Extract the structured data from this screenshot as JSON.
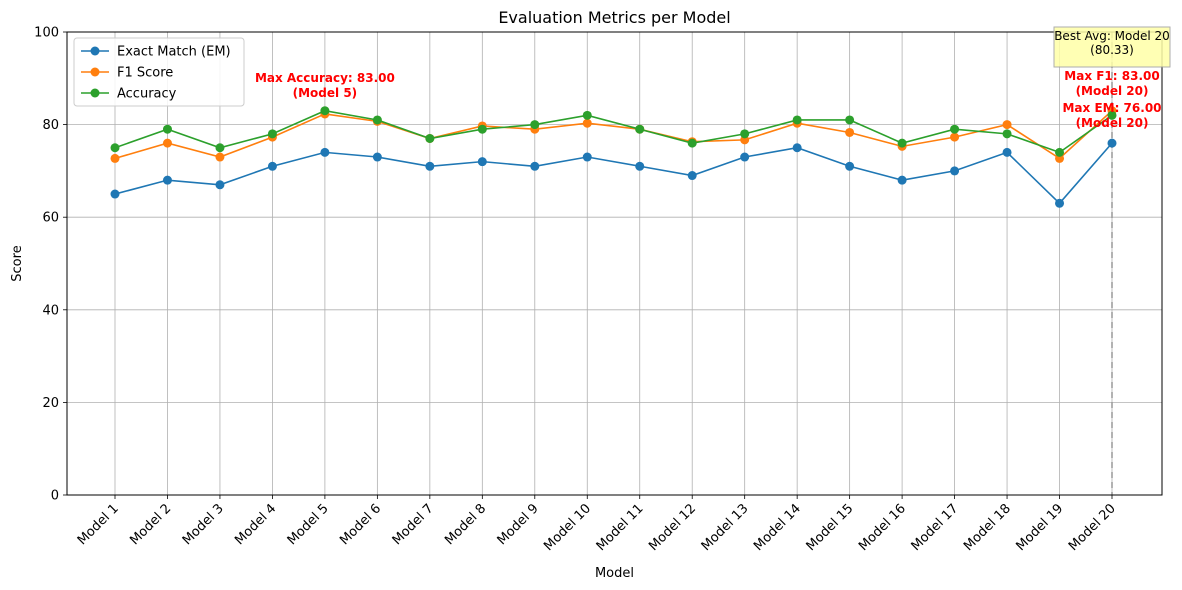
{
  "chart_data": {
    "type": "line",
    "title": "Evaluation Metrics per Model",
    "xlabel": "Model",
    "ylabel": "Score",
    "ylim": [
      0,
      100
    ],
    "yticks": [
      0,
      20,
      40,
      60,
      80,
      100
    ],
    "grid": true,
    "legend_position": "top-left",
    "categories": [
      "Model 1",
      "Model 2",
      "Model 3",
      "Model 4",
      "Model 5",
      "Model 6",
      "Model 7",
      "Model 8",
      "Model 9",
      "Model 10",
      "Model 11",
      "Model 12",
      "Model 13",
      "Model 14",
      "Model 15",
      "Model 16",
      "Model 17",
      "Model 18",
      "Model 19",
      "Model 20"
    ],
    "series": [
      {
        "name": "Exact Match (EM)",
        "color": "#1f77b4",
        "values": [
          65,
          68,
          67,
          71,
          74,
          73,
          71,
          72,
          71,
          73,
          71,
          69,
          73,
          75,
          71,
          68,
          70,
          74,
          63,
          76
        ]
      },
      {
        "name": "F1 Score",
        "color": "#ff7f0e",
        "values": [
          72.7,
          76,
          73,
          77.3,
          82.3,
          80.7,
          77,
          79.7,
          79,
          80.3,
          79,
          76.3,
          76.7,
          80.3,
          78.3,
          75.3,
          77.3,
          80,
          72.7,
          83
        ]
      },
      {
        "name": "Accuracy",
        "color": "#2ca02c",
        "values": [
          75,
          79,
          75,
          78,
          83,
          81,
          77,
          79,
          80,
          82,
          79,
          76,
          78,
          81,
          81,
          76,
          79,
          78,
          74,
          82
        ]
      }
    ],
    "annotations": [
      {
        "text": [
          "Max Accuracy: 83.00",
          "(Model 5)"
        ],
        "color": "#ff0000",
        "at": "Model 5"
      },
      {
        "text": [
          "Max F1: 83.00",
          "(Model 20)"
        ],
        "color": "#ff0000",
        "at": "Model 20"
      },
      {
        "text": [
          "Max EM: 76.00",
          "(Model 20)"
        ],
        "color": "#ff0000",
        "at": "Model 20"
      }
    ],
    "best_box": {
      "text": [
        "Best Avg: Model 20",
        "(80.33)"
      ],
      "bg": "#ffffa8",
      "at": "Model 20"
    }
  }
}
